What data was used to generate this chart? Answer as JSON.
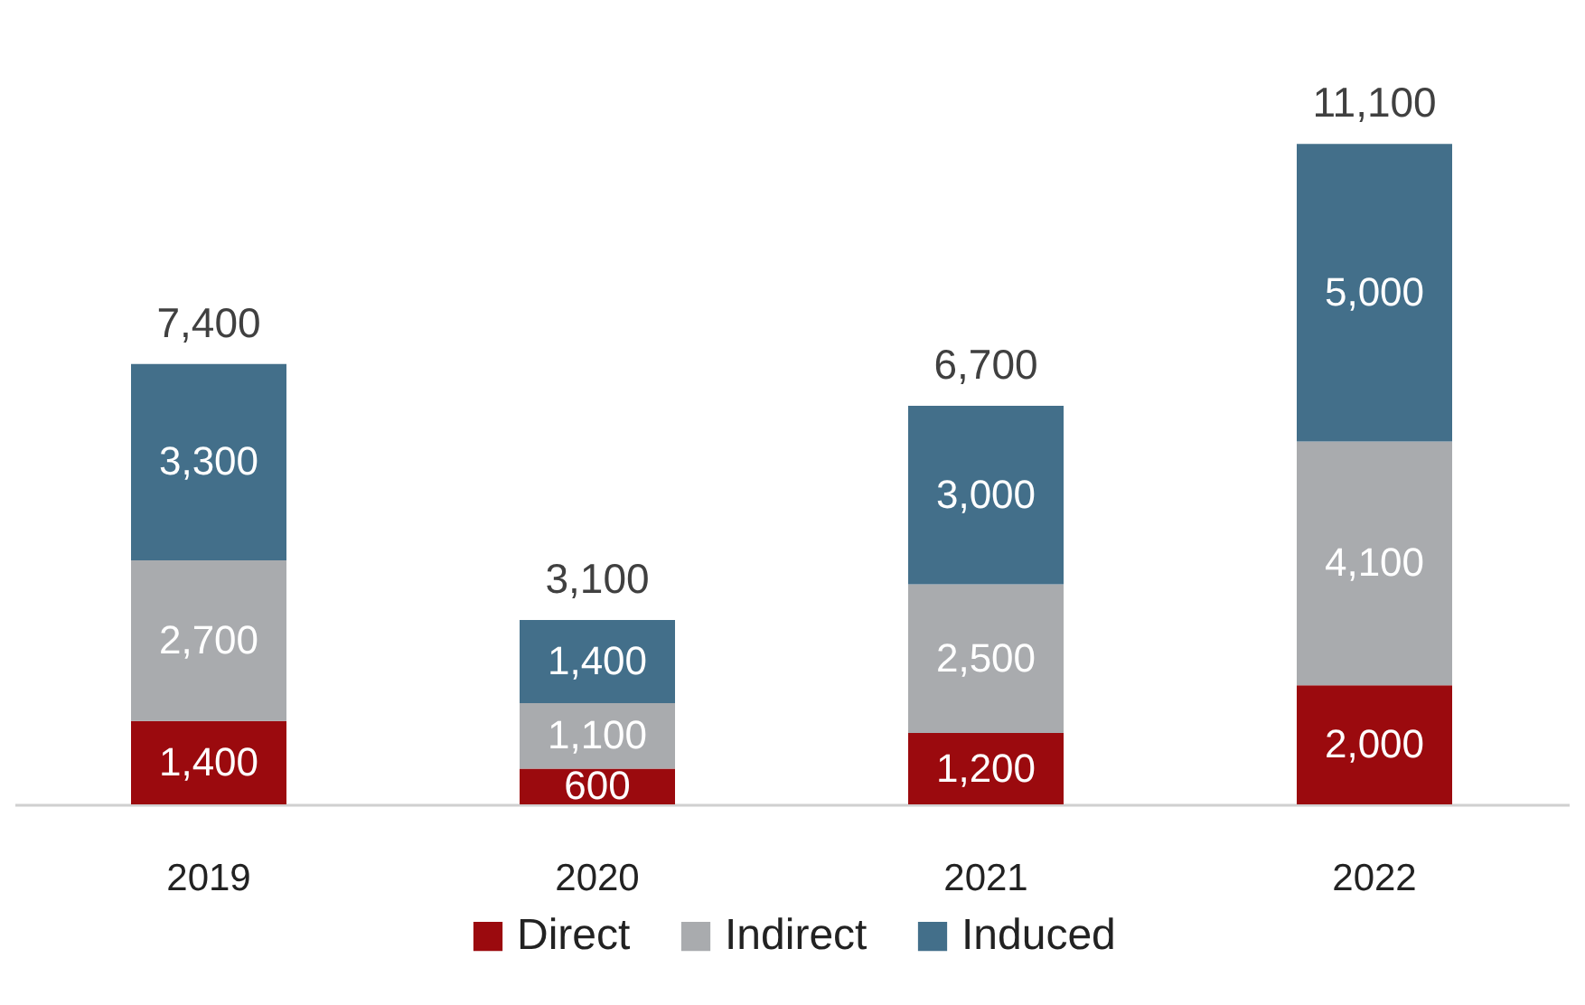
{
  "chart_data": {
    "type": "bar",
    "stacked": true,
    "legend": "bottom",
    "categories": [
      "2019",
      "2020",
      "2021",
      "2022"
    ],
    "series": [
      {
        "name": "Direct",
        "color": "#9b0a0e",
        "values": [
          1400,
          600,
          1200,
          2000
        ],
        "value_labels": [
          "1,400",
          "600",
          "1,200",
          "2,000"
        ]
      },
      {
        "name": "Indirect",
        "color": "#a9abae",
        "values": [
          2700,
          1100,
          2500,
          4100
        ],
        "value_labels": [
          "2,700",
          "1,100",
          "2,500",
          "4,100"
        ]
      },
      {
        "name": "Induced",
        "color": "#436f8a",
        "values": [
          3300,
          1400,
          3000,
          5000
        ],
        "value_labels": [
          "3,300",
          "1,400",
          "3,000",
          "5,000"
        ]
      }
    ],
    "totals": [
      "7,400",
      "3,100",
      "6,700",
      "11,100"
    ]
  }
}
